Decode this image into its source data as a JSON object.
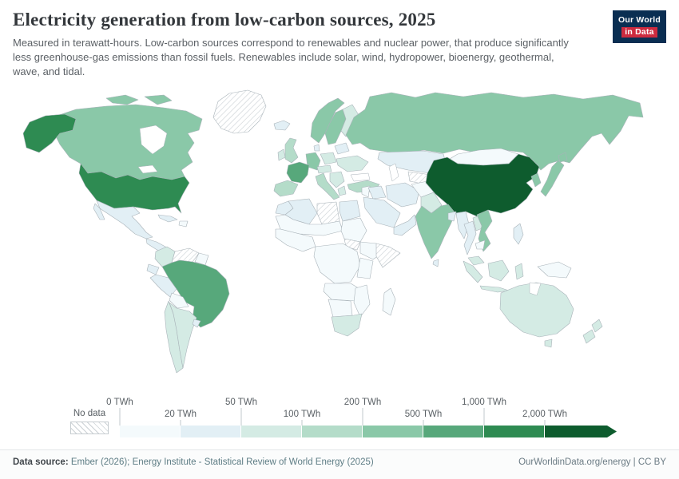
{
  "header": {
    "title": "Electricity generation from low-carbon sources, 2025",
    "subtitle": "Measured in terawatt-hours. Low-carbon sources correspond to renewables and nuclear power, that produce significantly less greenhouse-gas emissions than fossil fuels. Renewables include solar, wind, hydropower, bioenergy, geothermal, wave, and tidal.",
    "logo": {
      "line1": "Our World",
      "line2": "in Data",
      "bg_color": "#0a2e52",
      "accent_color": "#cd2b3f"
    }
  },
  "legend": {
    "no_data_label": "No data",
    "ticks": [
      {
        "label": "0 TWh",
        "row": "top"
      },
      {
        "label": "20 TWh",
        "row": "bottom"
      },
      {
        "label": "50 TWh",
        "row": "top"
      },
      {
        "label": "100 TWh",
        "row": "bottom"
      },
      {
        "label": "200 TWh",
        "row": "top"
      },
      {
        "label": "500 TWh",
        "row": "bottom"
      },
      {
        "label": "1,000 TWh",
        "row": "top"
      },
      {
        "label": "2,000 TWh",
        "row": "bottom"
      }
    ],
    "segment_colors": [
      "#f4fafc",
      "#e2eff5",
      "#d4ebe4",
      "#b4dcc9",
      "#8ac8a8",
      "#57a87b",
      "#2e8b52",
      "#0e5c2e"
    ]
  },
  "footer": {
    "source_label": "Data source:",
    "source_text": "Ember (2026); Energy Institute - Statistical Review of World Energy (2025)",
    "credit": "OurWorldinData.org/energy | CC BY"
  },
  "chart_data": {
    "type": "choropleth-map",
    "title": "Electricity generation from low-carbon sources, 2025",
    "unit": "TWh",
    "bin_edges": [
      0,
      20,
      50,
      100,
      200,
      500,
      1000,
      2000
    ],
    "bin_labels": [
      "0–20 TWh",
      "20–50 TWh",
      "50–100 TWh",
      "100–200 TWh",
      "200–500 TWh",
      "500–1,000 TWh",
      "1,000–2,000 TWh",
      "2,000+ TWh"
    ],
    "bin_colors": [
      "#f4fafc",
      "#e2eff5",
      "#d4ebe4",
      "#b4dcc9",
      "#8ac8a8",
      "#57a87b",
      "#2e8b52",
      "#0e5c2e"
    ],
    "default_color": "#f4fafc",
    "no_data_style": "diagonal-hatch",
    "no_data_regions": [
      "greenland",
      "venezuela",
      "libya",
      "south-sudan",
      "somalia",
      "turkmenistan"
    ],
    "regions": {
      "china": {
        "name": "China",
        "bin": "2,000+ TWh",
        "color": "#0e5c2e"
      },
      "united-states": {
        "name": "United States",
        "bin": "1,000–2,000 TWh",
        "color": "#2e8b52"
      },
      "brazil": {
        "name": "Brazil",
        "bin": "500–1,000 TWh",
        "color": "#57a87b"
      },
      "france": {
        "name": "France",
        "bin": "500–1,000 TWh",
        "color": "#57a87b"
      },
      "canada": {
        "name": "Canada",
        "bin": "200–500 TWh",
        "color": "#8ac8a8"
      },
      "russia": {
        "name": "Russia",
        "bin": "200–500 TWh",
        "color": "#8ac8a8"
      },
      "india": {
        "name": "India",
        "bin": "200–500 TWh",
        "color": "#8ac8a8"
      },
      "germany": {
        "name": "Germany",
        "bin": "200–500 TWh",
        "color": "#8ac8a8"
      },
      "japan": {
        "name": "Japan",
        "bin": "200–500 TWh",
        "color": "#8ac8a8"
      },
      "norway": {
        "name": "Norway",
        "bin": "200–500 TWh",
        "color": "#8ac8a8"
      },
      "sweden": {
        "name": "Sweden",
        "bin": "200–500 TWh",
        "color": "#8ac8a8"
      },
      "south-korea": {
        "name": "South Korea",
        "bin": "200–500 TWh",
        "color": "#8ac8a8"
      },
      "vietnam": {
        "name": "Vietnam",
        "bin": "200–500 TWh",
        "color": "#8ac8a8"
      },
      "united-kingdom": {
        "name": "United Kingdom",
        "bin": "100–200 TWh",
        "color": "#b4dcc9"
      },
      "spain": {
        "name": "Spain",
        "bin": "100–200 TWh",
        "color": "#b4dcc9"
      },
      "italy": {
        "name": "Italy",
        "bin": "100–200 TWh",
        "color": "#b4dcc9"
      },
      "turkey": {
        "name": "Turkey",
        "bin": "100–200 TWh",
        "color": "#b4dcc9"
      },
      "australia": {
        "name": "Australia",
        "bin": "50–100 TWh",
        "color": "#d4ebe4"
      },
      "indonesia": {
        "name": "Indonesia",
        "bin": "50–100 TWh",
        "color": "#d4ebe4"
      },
      "finland": {
        "name": "Finland",
        "bin": "50–100 TWh",
        "color": "#d4ebe4"
      },
      "poland": {
        "name": "Poland",
        "bin": "50–100 TWh",
        "color": "#d4ebe4"
      },
      "ukraine": {
        "name": "Ukraine",
        "bin": "50–100 TWh",
        "color": "#d4ebe4"
      },
      "central-europe": {
        "name": "Central Europe",
        "bin": "50–100 TWh",
        "color": "#d4ebe4"
      },
      "balkans": {
        "name": "Balkans",
        "bin": "50–100 TWh",
        "color": "#d4ebe4"
      },
      "greece": {
        "name": "Greece",
        "bin": "50–100 TWh",
        "color": "#d4ebe4"
      },
      "ireland": {
        "name": "Ireland",
        "bin": "50–100 TWh",
        "color": "#d4ebe4"
      },
      "chile": {
        "name": "Chile",
        "bin": "50–100 TWh",
        "color": "#d4ebe4"
      },
      "argentina": {
        "name": "Argentina",
        "bin": "50–100 TWh",
        "color": "#d4ebe4"
      },
      "colombia": {
        "name": "Colombia",
        "bin": "50–100 TWh",
        "color": "#d4ebe4"
      },
      "pakistan": {
        "name": "Pakistan",
        "bin": "50–100 TWh",
        "color": "#d4ebe4"
      },
      "laos": {
        "name": "Laos",
        "bin": "50–100 TWh",
        "color": "#d4ebe4"
      },
      "malaysia": {
        "name": "Malaysia",
        "bin": "50–100 TWh",
        "color": "#d4ebe4"
      },
      "south-africa": {
        "name": "South Africa",
        "bin": "50–100 TWh",
        "color": "#d4ebe4"
      },
      "new-zealand": {
        "name": "New Zealand",
        "bin": "50–100 TWh",
        "color": "#d4ebe4"
      },
      "sri-lanka": {
        "name": "Sri Lanka",
        "bin": "20–50 TWh",
        "color": "#e2eff5"
      },
      "mexico": {
        "name": "Mexico",
        "bin": "20–50 TWh",
        "color": "#e2eff5"
      },
      "cuba": {
        "name": "Cuba",
        "bin": "20–50 TWh",
        "color": "#e2eff5"
      },
      "ecuador": {
        "name": "Ecuador",
        "bin": "20–50 TWh",
        "color": "#e2eff5"
      },
      "peru": {
        "name": "Peru",
        "bin": "20–50 TWh",
        "color": "#e2eff5"
      },
      "uruguay": {
        "name": "Uruguay",
        "bin": "20–50 TWh",
        "color": "#e2eff5"
      },
      "iceland": {
        "name": "Iceland",
        "bin": "20–50 TWh",
        "color": "#e2eff5"
      },
      "denmark": {
        "name": "Denmark",
        "bin": "20–50 TWh",
        "color": "#e2eff5"
      },
      "belarus-baltics": {
        "name": "Belarus and Baltics",
        "bin": "20–50 TWh",
        "color": "#e2eff5"
      },
      "kazakhstan": {
        "name": "Kazakhstan",
        "bin": "20–50 TWh",
        "color": "#e2eff5"
      },
      "iran": {
        "name": "Iran",
        "bin": "20–50 TWh",
        "color": "#e2eff5"
      },
      "iraq": {
        "name": "Iraq",
        "bin": "20–50 TWh",
        "color": "#e2eff5"
      },
      "saudi-arabia": {
        "name": "Saudi Arabia",
        "bin": "20–50 TWh",
        "color": "#e2eff5"
      },
      "yemen-oman": {
        "name": "Yemen and Oman",
        "bin": "20–50 TWh",
        "color": "#e2eff5"
      },
      "egypt": {
        "name": "Egypt",
        "bin": "20–50 TWh",
        "color": "#e2eff5"
      },
      "morocco": {
        "name": "Morocco",
        "bin": "20–50 TWh",
        "color": "#e2eff5"
      },
      "algeria": {
        "name": "Algeria",
        "bin": "20–50 TWh",
        "color": "#e2eff5"
      },
      "bangladesh": {
        "name": "Bangladesh",
        "bin": "20–50 TWh",
        "color": "#e2eff5"
      },
      "myanmar": {
        "name": "Myanmar",
        "bin": "20–50 TWh",
        "color": "#e2eff5"
      },
      "thailand": {
        "name": "Thailand",
        "bin": "20–50 TWh",
        "color": "#e2eff5"
      },
      "philippines": {
        "name": "Philippines",
        "bin": "20–50 TWh",
        "color": "#e2eff5"
      },
      "central-america": {
        "name": "Central America",
        "bin": "20–50 TWh",
        "color": "#e2eff5"
      }
    }
  }
}
